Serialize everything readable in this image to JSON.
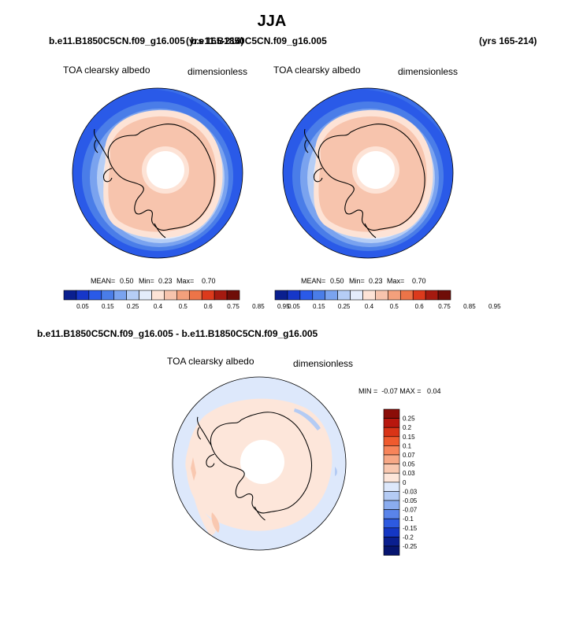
{
  "header": {
    "season": "JJA",
    "left_case": "b.e11.B1850C5CN.f09_g16.005",
    "left_years": "(yrs 165-214)",
    "right_case": "b.e11.B1850C5CN.f09_g16.005",
    "right_years": "(yrs 165-214)",
    "diff_title": "b.e11.B1850C5CN.f09_g16.005 - b.e11.B1850C5CN.f09_g16.005"
  },
  "chart_data": [
    {
      "type": "heatmap",
      "projection": "south-polar-stereographic",
      "variable": "TOA clearsky albedo",
      "units": "dimensionless",
      "stats": {
        "mean": "0.50",
        "min": "0.23",
        "max": "0.70"
      },
      "stats_labels": {
        "mean": "MEAN=",
        "min": "Min=",
        "max": "Max="
      },
      "levels": [
        "0.05",
        "0.15",
        "0.25",
        "0.4",
        "0.5",
        "0.6",
        "0.75",
        "0.85",
        "0.95"
      ],
      "colors": [
        "#0a1f8f",
        "#1637c9",
        "#2a5ae8",
        "#4a7de8",
        "#7aa3ef",
        "#b5cdf5",
        "#e4ecfb",
        "#fde3d6",
        "#f7c4ad",
        "#f3a07c",
        "#ec7448",
        "#dc3a1c",
        "#a51a10",
        "#6f0d08"
      ],
      "legend_placement": "bottom"
    },
    {
      "type": "heatmap",
      "projection": "south-polar-stereographic",
      "variable": "TOA clearsky albedo",
      "units": "dimensionless",
      "stats": {
        "mean": "0.50",
        "min": "0.23",
        "max": "0.70"
      },
      "stats_labels": {
        "mean": "MEAN=",
        "min": "Min=",
        "max": "Max="
      },
      "levels": [
        "0.05",
        "0.15",
        "0.25",
        "0.4",
        "0.5",
        "0.6",
        "0.75",
        "0.85",
        "0.95"
      ],
      "colors": [
        "#0a1f8f",
        "#1637c9",
        "#2a5ae8",
        "#4a7de8",
        "#7aa3ef",
        "#b5cdf5",
        "#e4ecfb",
        "#fde3d6",
        "#f7c4ad",
        "#f3a07c",
        "#ec7448",
        "#dc3a1c",
        "#a51a10",
        "#6f0d08"
      ],
      "legend_placement": "bottom"
    },
    {
      "type": "heatmap",
      "projection": "south-polar-stereographic",
      "variable": "TOA clearsky albedo",
      "units": "dimensionless",
      "stats_line": "MIN =  -0.07 MAX =   0.04",
      "levels": [
        "0.25",
        "0.2",
        "0.15",
        "0.1",
        "0.07",
        "0.05",
        "0.03",
        "0",
        "-0.03",
        "-0.05",
        "-0.07",
        "-0.1",
        "-0.15",
        "-0.2",
        "-0.25"
      ],
      "colors": [
        "#8b0d08",
        "#b8170e",
        "#d93417",
        "#ef5a2e",
        "#f7845a",
        "#f7a886",
        "#f9c8b0",
        "#fde6da",
        "#dde8fb",
        "#b4cbf4",
        "#8aacef",
        "#5a84ea",
        "#2d5ae0",
        "#1437c4",
        "#0a1f8f",
        "#061570"
      ],
      "legend_placement": "right"
    }
  ]
}
